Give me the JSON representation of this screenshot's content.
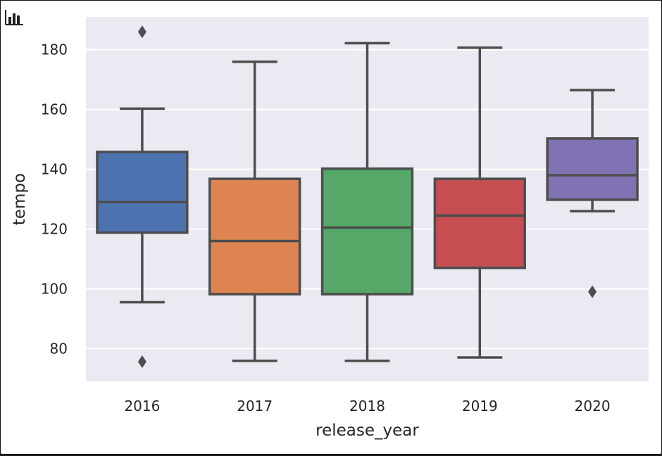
{
  "toolbar": {
    "icon": "bar-chart-icon"
  },
  "colors": {
    "plot_background": "#eaeaf2",
    "grid": "#ffffff",
    "line": "#4d4d4d",
    "boxes": [
      "#4c72b0",
      "#dd8452",
      "#55a868",
      "#c44e52",
      "#8172b3"
    ]
  },
  "chart_data": {
    "type": "box",
    "xlabel": "release_year",
    "ylabel": "tempo",
    "ylim": [
      69,
      191
    ],
    "yticks": [
      80,
      100,
      120,
      140,
      160,
      180
    ],
    "grid": true,
    "categories": [
      "2016",
      "2017",
      "2018",
      "2019",
      "2020"
    ],
    "boxes": [
      {
        "category": "2016",
        "whisker_low": 95.5,
        "q1": 118.8,
        "median": 129,
        "q3": 145.8,
        "whisker_high": 160.3,
        "outliers": [
          186,
          75.6
        ]
      },
      {
        "category": "2017",
        "whisker_low": 75.9,
        "q1": 98.2,
        "median": 116,
        "q3": 136.8,
        "whisker_high": 176,
        "outliers": []
      },
      {
        "category": "2018",
        "whisker_low": 75.9,
        "q1": 98.2,
        "median": 120.5,
        "q3": 140.2,
        "whisker_high": 182.2,
        "outliers": []
      },
      {
        "category": "2019",
        "whisker_low": 77,
        "q1": 107,
        "median": 124.5,
        "q3": 136.8,
        "whisker_high": 180.7,
        "outliers": []
      },
      {
        "category": "2020",
        "whisker_low": 126,
        "q1": 129.8,
        "median": 138,
        "q3": 150.3,
        "whisker_high": 166.5,
        "outliers": [
          99
        ]
      }
    ]
  }
}
